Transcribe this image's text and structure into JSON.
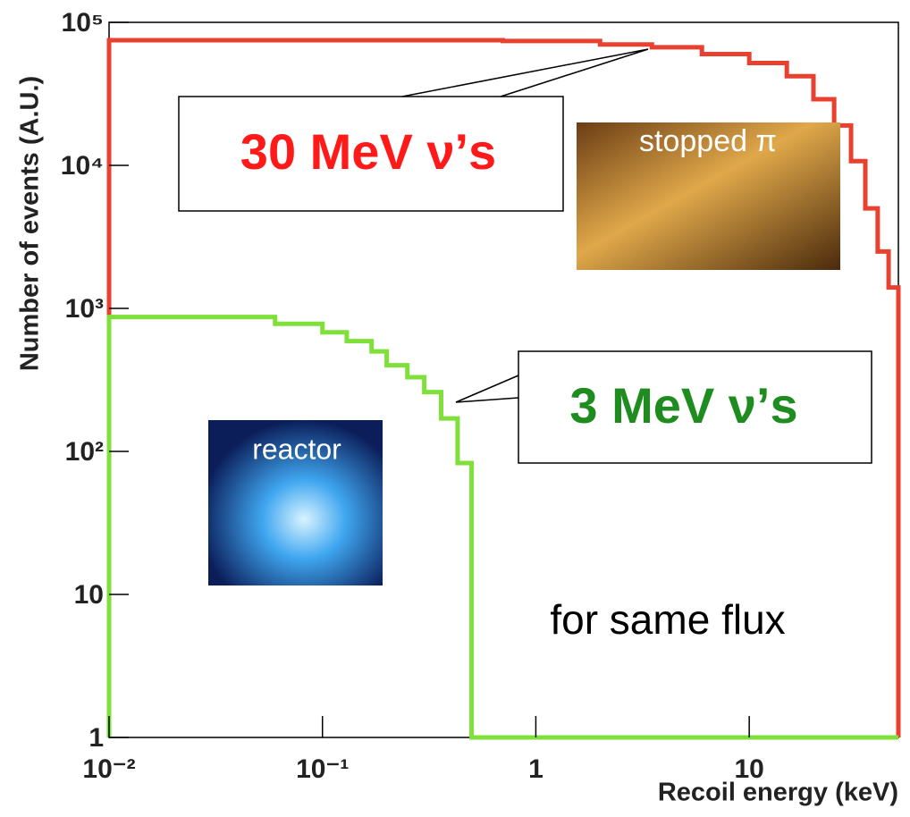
{
  "chart_data": {
    "type": "line",
    "drawstyle": "steps-post",
    "xlabel": "Recoil energy (keV)",
    "ylabel": "Number of events (A.U.)",
    "logx": true,
    "logy": true,
    "xlim": [
      0.01,
      50
    ],
    "ylim": [
      1,
      100000
    ],
    "xticks": [
      {
        "value": 0.01,
        "label": "10⁻²"
      },
      {
        "value": 0.1,
        "label": "10⁻¹"
      },
      1,
      10
    ],
    "yticks": [
      1,
      10,
      {
        "value": 100,
        "label": "10²"
      },
      {
        "value": 1000,
        "label": "10³"
      },
      {
        "value": 10000,
        "label": "10⁴"
      },
      {
        "value": 100000,
        "label": "10⁵"
      }
    ],
    "series": [
      {
        "color": "#e8412f",
        "x": [
          0.01,
          0.01,
          0.7,
          2,
          3.5,
          6,
          10,
          15,
          20,
          25,
          30,
          35,
          40,
          45,
          49,
          50,
          50
        ],
        "values": [
          1,
          75000,
          74000,
          70000,
          67000,
          60000,
          52000,
          42000,
          29000,
          19000,
          10700,
          5000,
          2500,
          1400,
          1400,
          400,
          1
        ]
      },
      {
        "color": "#7fe03a",
        "x": [
          0.01,
          0.01,
          0.06,
          0.1,
          0.13,
          0.17,
          0.2,
          0.25,
          0.3,
          0.36,
          0.43,
          0.5,
          50
        ],
        "values": [
          1,
          870,
          780,
          680,
          590,
          500,
          400,
          330,
          260,
          170,
          83,
          1,
          1
        ]
      }
    ],
    "annotations": [
      {
        "text": "30 MeV ν’s",
        "color": "#ff1a1a"
      },
      {
        "text": "3 MeV ν’s",
        "color": "#1e8c1e"
      },
      {
        "text": "for same flux",
        "color": "#000000"
      },
      {
        "text": "stopped π",
        "color": "#ffffff"
      },
      {
        "text": "reactor",
        "color": "#ffffff"
      }
    ]
  }
}
